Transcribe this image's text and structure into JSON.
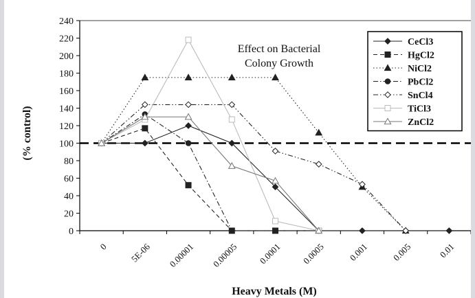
{
  "chart_data": {
    "type": "line",
    "title": "Effect on Bacterial\nColony Growth",
    "xlabel": "Heavy Metals (M)",
    "ylabel": "(% control)",
    "categories": [
      "0",
      "5E-06",
      "0.00001",
      "0.00005",
      "0.0001",
      "0.0005",
      "0.001",
      "0.005",
      "0.01"
    ],
    "yticks": [
      0,
      20,
      40,
      60,
      80,
      100,
      120,
      140,
      160,
      180,
      200,
      220,
      240
    ],
    "ylim": [
      0,
      240
    ],
    "grid": false,
    "legend": "top-right",
    "reference_line": {
      "y": 100,
      "style": "dashed"
    },
    "series": [
      {
        "name": "CeCl3",
        "marker": "diamond-filled",
        "dash": "solid",
        "color": "#222222",
        "values": [
          100,
          100,
          120,
          100,
          50,
          0,
          0,
          0,
          0
        ]
      },
      {
        "name": "HgCl2",
        "marker": "square-filled",
        "dash": "dash",
        "color": "#222222",
        "values": [
          100,
          117,
          52,
          0,
          0,
          0,
          null,
          null,
          null
        ]
      },
      {
        "name": "NiCl2",
        "marker": "triangle-filled",
        "dash": "dot",
        "color": "#222222",
        "values": [
          100,
          175,
          175,
          175,
          175,
          112,
          50,
          0,
          null
        ]
      },
      {
        "name": "PbCl2",
        "marker": "circle-filled",
        "dash": "dashdot",
        "color": "#222222",
        "values": [
          100,
          133,
          100,
          0,
          0,
          0,
          null,
          null,
          null
        ]
      },
      {
        "name": "SnCl4",
        "marker": "diamond-open",
        "dash": "dashdotdot",
        "color": "#222222",
        "values": [
          100,
          144,
          144,
          144,
          91,
          76,
          53,
          0,
          null
        ]
      },
      {
        "name": "TiCl3",
        "marker": "square-open",
        "dash": "solid",
        "color": "#bbbbbb",
        "values": [
          100,
          127,
          218,
          127,
          11,
          0,
          null,
          null,
          null
        ]
      },
      {
        "name": "ZnCl2",
        "marker": "triangle-open",
        "dash": "solid",
        "color": "#777777",
        "values": [
          100,
          130,
          130,
          74,
          57,
          0,
          null,
          null,
          null
        ]
      }
    ]
  }
}
